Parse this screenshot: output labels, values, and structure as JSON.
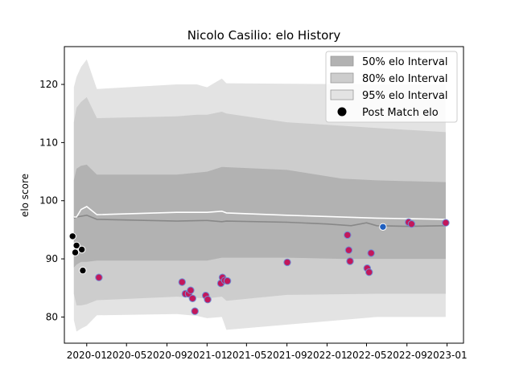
{
  "chart_data": {
    "type": "line",
    "title": "Nicolo Casilio: elo History",
    "xlabel": "",
    "ylabel": "elo score",
    "xlim": [
      "2019-10-25",
      "2023-02-20"
    ],
    "ylim": [
      75.5,
      126.5
    ],
    "grid": false,
    "legend_placement": "top-right",
    "x_ticks": [
      "2020-01",
      "2020-05",
      "2020-09",
      "2021-01",
      "2021-05",
      "2021-09",
      "2022-01",
      "2022-05",
      "2022-09",
      "2023-01"
    ],
    "y_ticks": [
      80,
      90,
      100,
      110,
      120
    ],
    "colors": {
      "band_50": "#b2b2b2",
      "band_80": "#cdcdcd",
      "band_95": "#e3e3e3",
      "mean_line": "#888888",
      "upper_line": "#ffffff",
      "dot_fill": "#c2185b",
      "dot_edge": "#6f8fd6",
      "early_dot": "#000000",
      "last_dot": "#1f5fbf"
    },
    "legend": [
      {
        "label": "50% elo Interval",
        "kind": "band_50"
      },
      {
        "label": "80% elo Interval",
        "kind": "band_80"
      },
      {
        "label": "95% elo Interval",
        "kind": "band_95"
      },
      {
        "label": "Post Match elo",
        "kind": "dot"
      }
    ],
    "series": [
      {
        "name": "95% elo Interval",
        "x": [
          "2019-11-23",
          "2019-12-01",
          "2019-12-15",
          "2020-01-01",
          "2020-02-01",
          "2020-10-01",
          "2020-12-01",
          "2021-01-01",
          "2021-02-15",
          "2021-03-01",
          "2022-06-01",
          "2022-12-28"
        ],
        "lower": [
          79.5,
          77.5,
          78.0,
          78.5,
          80.3,
          80.5,
          80.2,
          79.8,
          80.0,
          77.8,
          80.0,
          80.0
        ],
        "upper": [
          119.5,
          121.3,
          123.0,
          124.3,
          119.2,
          120.0,
          120.0,
          119.5,
          121.0,
          120.2,
          120.0,
          120.0
        ]
      },
      {
        "name": "80% elo Interval",
        "x": [
          "2019-11-23",
          "2019-12-01",
          "2019-12-15",
          "2020-01-01",
          "2020-02-01",
          "2020-10-01",
          "2020-12-01",
          "2021-01-01",
          "2021-02-15",
          "2021-03-01",
          "2021-09-01",
          "2022-06-01",
          "2022-12-28"
        ],
        "lower": [
          84.0,
          82.0,
          82.0,
          82.2,
          82.9,
          83.5,
          83.3,
          83.2,
          83.5,
          82.8,
          83.8,
          84.0,
          84.0
        ],
        "upper": [
          113.5,
          116.0,
          117.0,
          117.8,
          114.2,
          114.5,
          114.8,
          114.8,
          115.3,
          115.0,
          113.5,
          112.5,
          111.8
        ]
      },
      {
        "name": "50% elo Interval",
        "x": [
          "2019-11-23",
          "2019-12-01",
          "2019-12-15",
          "2020-01-01",
          "2020-02-01",
          "2020-10-01",
          "2021-01-01",
          "2021-02-15",
          "2021-09-01",
          "2022-02-15",
          "2022-06-01",
          "2022-12-28"
        ],
        "lower": [
          88.5,
          89.0,
          89.5,
          89.5,
          89.7,
          89.7,
          89.7,
          90.2,
          90.2,
          90.0,
          90.0,
          90.0
        ],
        "upper": [
          103.5,
          105.5,
          106.0,
          106.2,
          104.5,
          104.5,
          105.0,
          105.8,
          105.3,
          103.8,
          103.5,
          103.2
        ]
      },
      {
        "name": "",
        "x": [
          "2019-11-23",
          "2019-12-01",
          "2020-01-01",
          "2020-02-01",
          "2020-10-01",
          "2021-01-01",
          "2021-02-15",
          "2021-03-01",
          "2021-09-01",
          "2022-01-01",
          "2022-03-15",
          "2022-05-01",
          "2022-06-01",
          "2022-09-01",
          "2022-12-28"
        ],
        "values": [
          97.0,
          97.2,
          97.5,
          96.8,
          96.5,
          96.6,
          96.4,
          96.5,
          96.3,
          96.0,
          95.7,
          96.2,
          95.7,
          95.6,
          95.7
        ]
      },
      {
        "name": "",
        "x": [
          "2019-11-23",
          "2019-12-01",
          "2019-12-15",
          "2020-01-01",
          "2020-02-01",
          "2020-10-01",
          "2021-01-01",
          "2021-02-15",
          "2021-03-01",
          "2021-09-01",
          "2022-06-01",
          "2022-12-28"
        ],
        "values": [
          97.2,
          97.2,
          98.5,
          99.0,
          97.6,
          98.0,
          98.0,
          98.2,
          97.9,
          97.5,
          97.0,
          96.8
        ]
      }
    ],
    "points": [
      {
        "x": "2019-11-19",
        "y": 93.9
      },
      {
        "x": "2019-11-27",
        "y": 91.1
      },
      {
        "x": "2019-12-01",
        "y": 92.3
      },
      {
        "x": "2019-12-17",
        "y": 91.6
      },
      {
        "x": "2019-12-20",
        "y": 88.0
      },
      {
        "x": "2020-02-07",
        "y": 86.8
      },
      {
        "x": "2020-10-17",
        "y": 86.0
      },
      {
        "x": "2020-10-27",
        "y": 84.0
      },
      {
        "x": "2020-11-06",
        "y": 84.0
      },
      {
        "x": "2020-11-12",
        "y": 84.6
      },
      {
        "x": "2020-11-18",
        "y": 83.2
      },
      {
        "x": "2020-11-25",
        "y": 81.0
      },
      {
        "x": "2020-12-28",
        "y": 83.7
      },
      {
        "x": "2021-01-03",
        "y": 83.0
      },
      {
        "x": "2021-02-12",
        "y": 85.8
      },
      {
        "x": "2021-02-17",
        "y": 86.8
      },
      {
        "x": "2021-02-24",
        "y": 86.3
      },
      {
        "x": "2021-03-04",
        "y": 86.2
      },
      {
        "x": "2021-09-02",
        "y": 89.4
      },
      {
        "x": "2022-03-04",
        "y": 94.1
      },
      {
        "x": "2022-03-08",
        "y": 91.5
      },
      {
        "x": "2022-03-12",
        "y": 89.6
      },
      {
        "x": "2022-05-03",
        "y": 88.4
      },
      {
        "x": "2022-05-09",
        "y": 87.7
      },
      {
        "x": "2022-05-15",
        "y": 91.0
      },
      {
        "x": "2022-06-20",
        "y": 95.5
      },
      {
        "x": "2022-09-06",
        "y": 96.3
      },
      {
        "x": "2022-09-15",
        "y": 96.0
      },
      {
        "x": "2022-12-28",
        "y": 96.2
      }
    ]
  }
}
